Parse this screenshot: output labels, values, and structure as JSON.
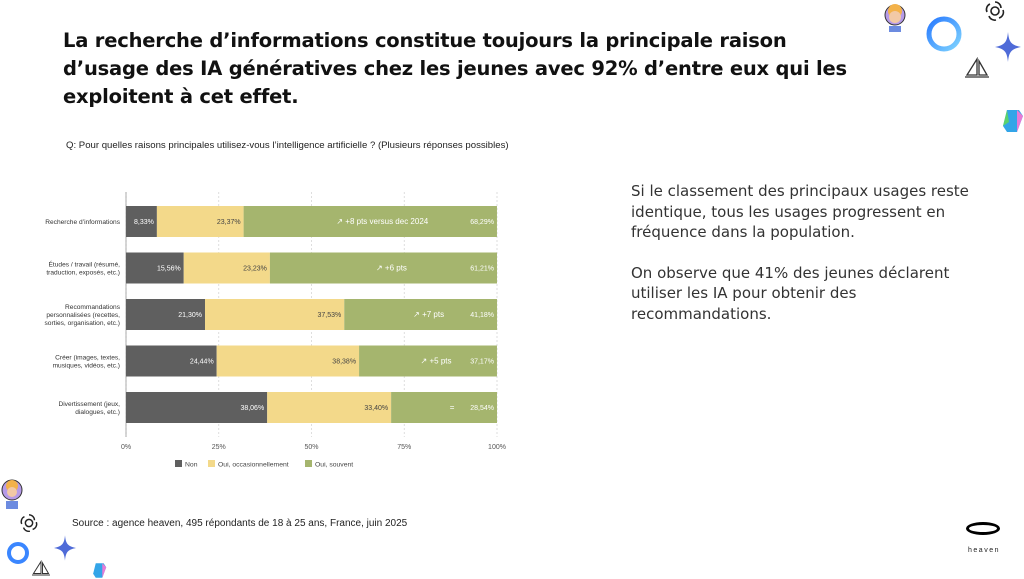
{
  "title": "La recherche d’informations constitue toujours la principale raison d’usage des IA génératives chez les jeunes avec 92% d’entre eux qui les exploitent à cet effet.",
  "question": "Q: Pour quelles raisons principales utilisez-vous l’intelligence artificielle ? (Plusieurs réponses possibles)",
  "right_text": {
    "p1": "Si le classement des principaux usages reste identique, tous les usages progressent en fréquence dans la population.",
    "p2": "On observe que 41% des jeunes déclarent utiliser les IA pour obtenir des recommandations."
  },
  "source": "Source : agence heaven, 495 répondants de 18 à 25 ans, France, juin 2025",
  "brand": "heaven",
  "colors": {
    "non": "#5f5f5f",
    "occasionnel": "#f3d98a",
    "souvent": "#a5b56e"
  },
  "chart_data": {
    "type": "bar",
    "orientation": "horizontal",
    "stacked": true,
    "categories": [
      [
        "Recherche d’informations"
      ],
      [
        "Études / travail (résumé,",
        "traduction, exposés, etc.)"
      ],
      [
        "Recommandations",
        "personnalisées (recettes,",
        "sorties, organisation, etc.)"
      ],
      [
        "Créer (images, textes,",
        "musiques, vidéos, etc.)"
      ],
      [
        "Divertissement (jeux,",
        "dialogues, etc.)"
      ]
    ],
    "series": [
      {
        "name": "Non",
        "values": [
          8.33,
          15.56,
          21.3,
          24.44,
          38.06
        ],
        "labels": [
          "8,33%",
          "15,56%",
          "21,30%",
          "24,44%",
          "38,06%"
        ]
      },
      {
        "name": "Oui, occasionnellement",
        "values": [
          23.37,
          23.23,
          37.53,
          38.38,
          33.4
        ],
        "labels": [
          "23,37%",
          "23,23%",
          "37,53%",
          "38,38%",
          "33,40%"
        ]
      },
      {
        "name": "Oui, souvent",
        "values": [
          68.29,
          61.21,
          41.18,
          37.17,
          28.54
        ],
        "labels": [
          "68,29%",
          "61,21%",
          "41,18%",
          "37,17%",
          "28,54%"
        ]
      }
    ],
    "annotations": [
      "↗ +8 pts versus dec 2024",
      "↗ +6 pts",
      "↗ +7 pts",
      "↗ +5 pts",
      "="
    ],
    "xlim": [
      0,
      100
    ],
    "xticks": [
      "0%",
      "25%",
      "50%",
      "75%",
      "100%"
    ],
    "legend_position": "bottom",
    "grid": true
  }
}
